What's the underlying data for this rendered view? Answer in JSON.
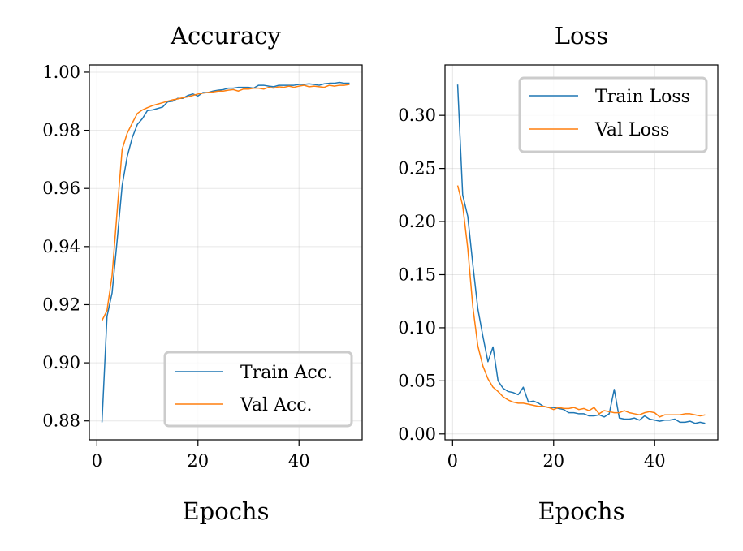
{
  "chart_data": [
    {
      "type": "line",
      "title": "Accuracy",
      "xlabel": "Epochs",
      "ylabel": "",
      "xlim": [
        -1.5,
        52.5
      ],
      "ylim": [
        0.8735,
        1.0025
      ],
      "xticks": [
        0,
        20,
        40
      ],
      "yticks": [
        0.88,
        0.9,
        0.92,
        0.94,
        0.96,
        0.98,
        1.0
      ],
      "ytick_labels": [
        "0.88",
        "0.90",
        "0.92",
        "0.94",
        "0.96",
        "0.98",
        "1.00"
      ],
      "xtick_labels": [
        "0",
        "20",
        "40"
      ],
      "grid": true,
      "legend_position": "lower-right",
      "x": [
        1,
        2,
        3,
        4,
        5,
        6,
        7,
        8,
        9,
        10,
        11,
        12,
        13,
        14,
        15,
        16,
        17,
        18,
        19,
        20,
        21,
        22,
        23,
        24,
        25,
        26,
        27,
        28,
        29,
        30,
        31,
        32,
        33,
        34,
        35,
        36,
        37,
        38,
        39,
        40,
        41,
        42,
        43,
        44,
        45,
        46,
        47,
        48,
        49,
        50
      ],
      "series": [
        {
          "name": "Train Acc.",
          "color": "#1f77b4",
          "values": [
            0.8795,
            0.916,
            0.924,
            0.942,
            0.961,
            0.971,
            0.9775,
            0.982,
            0.984,
            0.9868,
            0.987,
            0.9875,
            0.988,
            0.9898,
            0.99,
            0.991,
            0.991,
            0.992,
            0.9925,
            0.9918,
            0.993,
            0.993,
            0.9935,
            0.9938,
            0.994,
            0.9945,
            0.9945,
            0.9948,
            0.9948,
            0.9948,
            0.9945,
            0.9955,
            0.9955,
            0.9952,
            0.995,
            0.9955,
            0.9955,
            0.9955,
            0.9955,
            0.9958,
            0.9958,
            0.996,
            0.9958,
            0.9955,
            0.996,
            0.9962,
            0.9962,
            0.9965,
            0.9962,
            0.9962
          ]
        },
        {
          "name": "Val Acc.",
          "color": "#ff7f0e",
          "values": [
            0.9145,
            0.918,
            0.93,
            0.952,
            0.9735,
            0.979,
            0.9825,
            0.9858,
            0.987,
            0.9878,
            0.9885,
            0.989,
            0.9895,
            0.99,
            0.9905,
            0.9908,
            0.9912,
            0.9915,
            0.992,
            0.9925,
            0.9928,
            0.993,
            0.9932,
            0.9935,
            0.9935,
            0.9938,
            0.994,
            0.9935,
            0.9942,
            0.9942,
            0.9945,
            0.9945,
            0.9942,
            0.9948,
            0.9945,
            0.995,
            0.9948,
            0.9952,
            0.9948,
            0.9952,
            0.9955,
            0.995,
            0.9952,
            0.995,
            0.9948,
            0.9955,
            0.9952,
            0.9955,
            0.9955,
            0.9958
          ]
        }
      ]
    },
    {
      "type": "line",
      "title": "Loss",
      "xlabel": "Epochs",
      "ylabel": "",
      "xlim": [
        -1.5,
        52.5
      ],
      "ylim": [
        -0.0055,
        0.3475
      ],
      "xticks": [
        0,
        20,
        40
      ],
      "yticks": [
        0.0,
        0.05,
        0.1,
        0.15,
        0.2,
        0.25,
        0.3
      ],
      "ytick_labels": [
        "0.00",
        "0.05",
        "0.10",
        "0.15",
        "0.20",
        "0.25",
        "0.30"
      ],
      "xtick_labels": [
        "0",
        "20",
        "40"
      ],
      "grid": true,
      "legend_position": "upper-right",
      "x": [
        1,
        2,
        3,
        4,
        5,
        6,
        7,
        8,
        9,
        10,
        11,
        12,
        13,
        14,
        15,
        16,
        17,
        18,
        19,
        20,
        21,
        22,
        23,
        24,
        25,
        26,
        27,
        28,
        29,
        30,
        31,
        32,
        33,
        34,
        35,
        36,
        37,
        38,
        39,
        40,
        41,
        42,
        43,
        44,
        45,
        46,
        47,
        48,
        49,
        50
      ],
      "series": [
        {
          "name": "Train Loss",
          "color": "#1f77b4",
          "values": [
            0.329,
            0.225,
            0.205,
            0.16,
            0.118,
            0.092,
            0.068,
            0.082,
            0.05,
            0.043,
            0.04,
            0.039,
            0.037,
            0.044,
            0.03,
            0.031,
            0.029,
            0.026,
            0.025,
            0.025,
            0.024,
            0.023,
            0.02,
            0.02,
            0.019,
            0.019,
            0.017,
            0.017,
            0.018,
            0.016,
            0.019,
            0.042,
            0.015,
            0.014,
            0.014,
            0.015,
            0.013,
            0.017,
            0.014,
            0.013,
            0.012,
            0.013,
            0.013,
            0.014,
            0.011,
            0.011,
            0.012,
            0.01,
            0.011,
            0.01
          ]
        },
        {
          "name": "Val Loss",
          "color": "#ff7f0e",
          "values": [
            0.234,
            0.215,
            0.175,
            0.12,
            0.083,
            0.064,
            0.052,
            0.044,
            0.04,
            0.035,
            0.032,
            0.03,
            0.029,
            0.029,
            0.028,
            0.027,
            0.026,
            0.026,
            0.025,
            0.023,
            0.025,
            0.024,
            0.024,
            0.025,
            0.023,
            0.024,
            0.022,
            0.025,
            0.019,
            0.022,
            0.021,
            0.02,
            0.02,
            0.022,
            0.02,
            0.019,
            0.018,
            0.02,
            0.021,
            0.02,
            0.016,
            0.018,
            0.018,
            0.018,
            0.018,
            0.019,
            0.019,
            0.018,
            0.017,
            0.018
          ]
        }
      ]
    }
  ]
}
